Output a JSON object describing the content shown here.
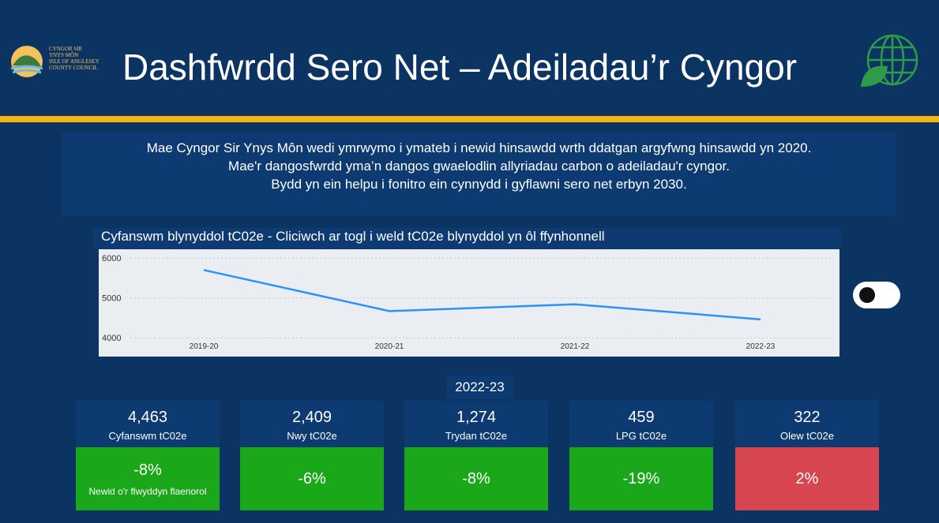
{
  "header": {
    "logo_lines": [
      "CYNGOR SIR",
      "YNYS MÔN",
      "ISLE OF ANGLESEY",
      "COUNTY COUNCIL"
    ],
    "title": "Dashfwrdd Sero Net – Adeiladau’r Cyngor"
  },
  "intro": [
    "Mae Cyngor Sir Ynys Môn wedi ymrwymo i ymateb i newid hinsawdd wrth ddatgan argyfwng hinsawdd yn 2020.",
    "Mae'r dangosfwrdd yma’n dangos gwaelodlin allyriadau carbon o adeiladau'r cyngor.",
    "Bydd yn ein helpu i fonitro ein cynnydd i gyflawni sero net erbyn 2030."
  ],
  "chart_data": {
    "type": "line",
    "title": "Cyfanswm blynyddol tC02e - Cliciwch ar togl i weld tC02e blynyddol yn ôl ffynhonnell",
    "categories": [
      "2019-20",
      "2020-21",
      "2021-22",
      "2022-23"
    ],
    "values": [
      5700,
      4670,
      4840,
      4463
    ],
    "color": "#2a93f5",
    "ylim": [
      3530,
      6220
    ],
    "yticks": [
      4000,
      5000,
      6000
    ],
    "grid": true
  },
  "year": "2022-23",
  "cards": [
    {
      "value": "4,463",
      "label": "Cyfanswm tC02e",
      "change": "-8%",
      "note": "Newid o'r flwyddyn flaenorol",
      "color": "#1aa81a"
    },
    {
      "value": "2,409",
      "label": "Nwy tC02e",
      "change": "-6%",
      "color": "#1aa81a"
    },
    {
      "value": "1,274",
      "label": "Trydan tC02e",
      "change": "-8%",
      "color": "#1aa81a"
    },
    {
      "value": "459",
      "label": "LPG tC02e",
      "change": "-19%",
      "color": "#1aa81a"
    },
    {
      "value": "322",
      "label": "Olew tC02e",
      "change": "2%",
      "color": "#d64550"
    }
  ]
}
